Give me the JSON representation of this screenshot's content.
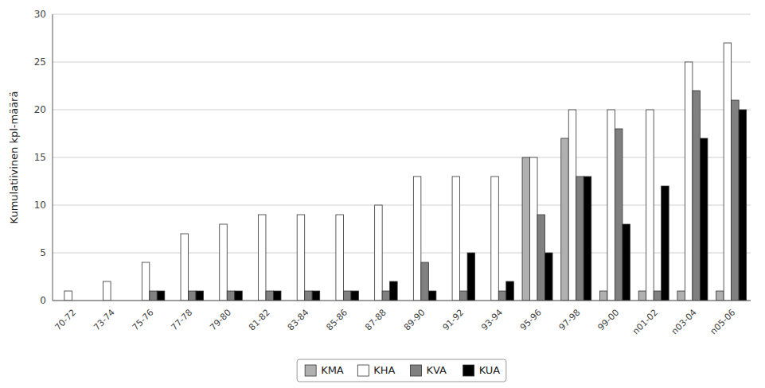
{
  "chart_data": {
    "type": "bar",
    "categories": [
      "70-72",
      "73-74",
      "75-76",
      "77-78",
      "79-80",
      "81-82",
      "83-84",
      "85-86",
      "87-88",
      "89-90",
      "91-92",
      "93-94",
      "95-96",
      "97-98",
      "99-00",
      "n01-02",
      "n03-04",
      "n05-06"
    ],
    "series": [
      {
        "name": "KMA",
        "color": "#b0b0b0",
        "values": [
          0,
          0,
          0,
          0,
          0,
          0,
          0,
          0,
          0,
          0,
          0,
          0,
          15,
          17,
          1,
          1,
          1,
          1
        ]
      },
      {
        "name": "KHA",
        "color": "#ffffff",
        "values": [
          1,
          2,
          4,
          7,
          8,
          9,
          9,
          9,
          10,
          13,
          13,
          13,
          15,
          20,
          20,
          20,
          25,
          27
        ]
      },
      {
        "name": "KVA",
        "color": "#808080",
        "values": [
          0,
          0,
          1,
          1,
          1,
          1,
          1,
          1,
          1,
          4,
          1,
          1,
          9,
          13,
          18,
          1,
          22,
          21
        ]
      },
      {
        "name": "KUA",
        "color": "#000000",
        "values": [
          0,
          0,
          1,
          1,
          1,
          1,
          1,
          1,
          2,
          1,
          5,
          2,
          5,
          13,
          8,
          12,
          17,
          20
        ]
      }
    ],
    "ylabel": "Kumulatiivinen kpl-määrä",
    "ylim": [
      0,
      30
    ],
    "yticks": [
      0,
      5,
      10,
      15,
      20,
      25,
      30
    ],
    "grid": true,
    "legend": "bottom"
  }
}
